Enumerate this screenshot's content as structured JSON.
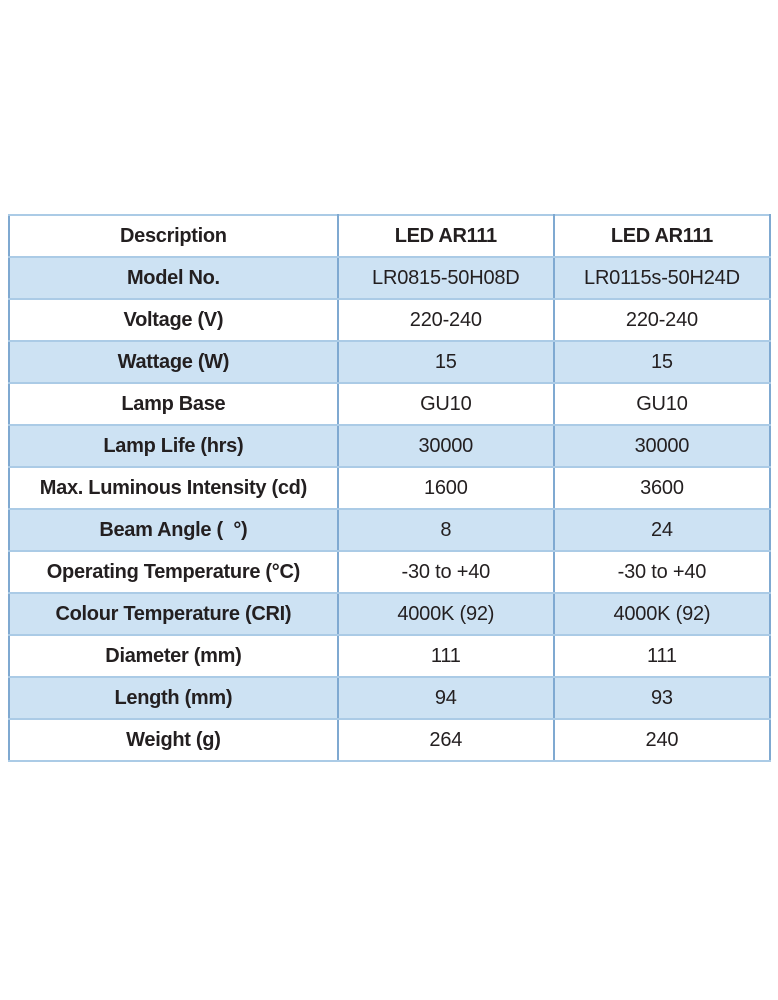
{
  "table": {
    "header": {
      "col1": "Description",
      "col2": "LED AR111",
      "col3": "LED AR111"
    },
    "rows": [
      {
        "label": "Model No.",
        "v1": "LR0815-50H08D",
        "v2": "LR0115s-50H24D"
      },
      {
        "label": "Voltage (V)",
        "v1": "220-240",
        "v2": "220-240"
      },
      {
        "label": "Wattage (W)",
        "v1": "15",
        "v2": "15"
      },
      {
        "label": "Lamp Base",
        "v1": "GU10",
        "v2": "GU10"
      },
      {
        "label": "Lamp Life (hrs)",
        "v1": "30000",
        "v2": "30000"
      },
      {
        "label": "Max. Luminous Intensity (cd)",
        "v1": "1600",
        "v2": "3600"
      },
      {
        "label": "Beam Angle (  °)",
        "v1": "8",
        "v2": "24"
      },
      {
        "label": "Operating Temperature (°C)",
        "v1": "-30 to +40",
        "v2": "-30 to +40"
      },
      {
        "label": "Colour Temperature (CRI)",
        "v1": "4000K (92)",
        "v2": "4000K (92)"
      },
      {
        "label": "Diameter (mm)",
        "v1": "111",
        "v2": "111"
      },
      {
        "label": "Length (mm)",
        "v1": "94",
        "v2": "93"
      },
      {
        "label": "Weight (g)",
        "v1": "264",
        "v2": "240"
      }
    ],
    "colors": {
      "row_alt_bg": "#cde2f3",
      "border_vertical": "#7fa9d1",
      "border_horizontal": "#abcbe6",
      "border_outer": "#8ab2d8",
      "text": "#231f20"
    }
  }
}
